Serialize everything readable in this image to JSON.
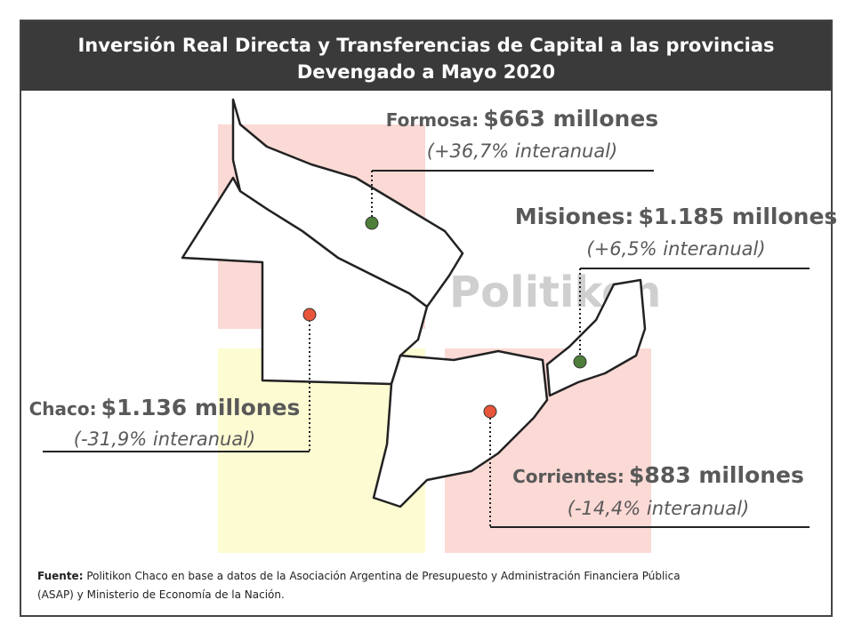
{
  "header": {
    "title_lines": [
      "Inversión Real Directa y Transferencias de Capital a las provincias",
      "Devengado a Mayo 2020"
    ]
  },
  "watermark": "Politikon",
  "provinces": [
    {
      "name": "Formosa:",
      "amount": "$663 millones",
      "change": "(+36,7% interanual)",
      "dot_color": "#4e7f3a"
    },
    {
      "name": "Misiones:",
      "amount": "$1.185 millones",
      "change": "(+6,5% interanual)",
      "dot_color": "#4e7f3a"
    },
    {
      "name": "Chaco:",
      "amount": "$1.136 millones",
      "change": "(-31,9% interanual)",
      "dot_color": "#e8553a"
    },
    {
      "name": "Corrientes:",
      "amount": "$883 millones",
      "change": "(-14,4% interanual)",
      "dot_color": "#e8553a"
    }
  ],
  "source": {
    "label": "Fuente:",
    "lines": [
      "Politikon Chaco en base a datos de la Asociación Argentina de Presupuesto y Administración Financiera Pública",
      "(ASAP) y Ministerio de Economía de la Nación."
    ]
  }
}
